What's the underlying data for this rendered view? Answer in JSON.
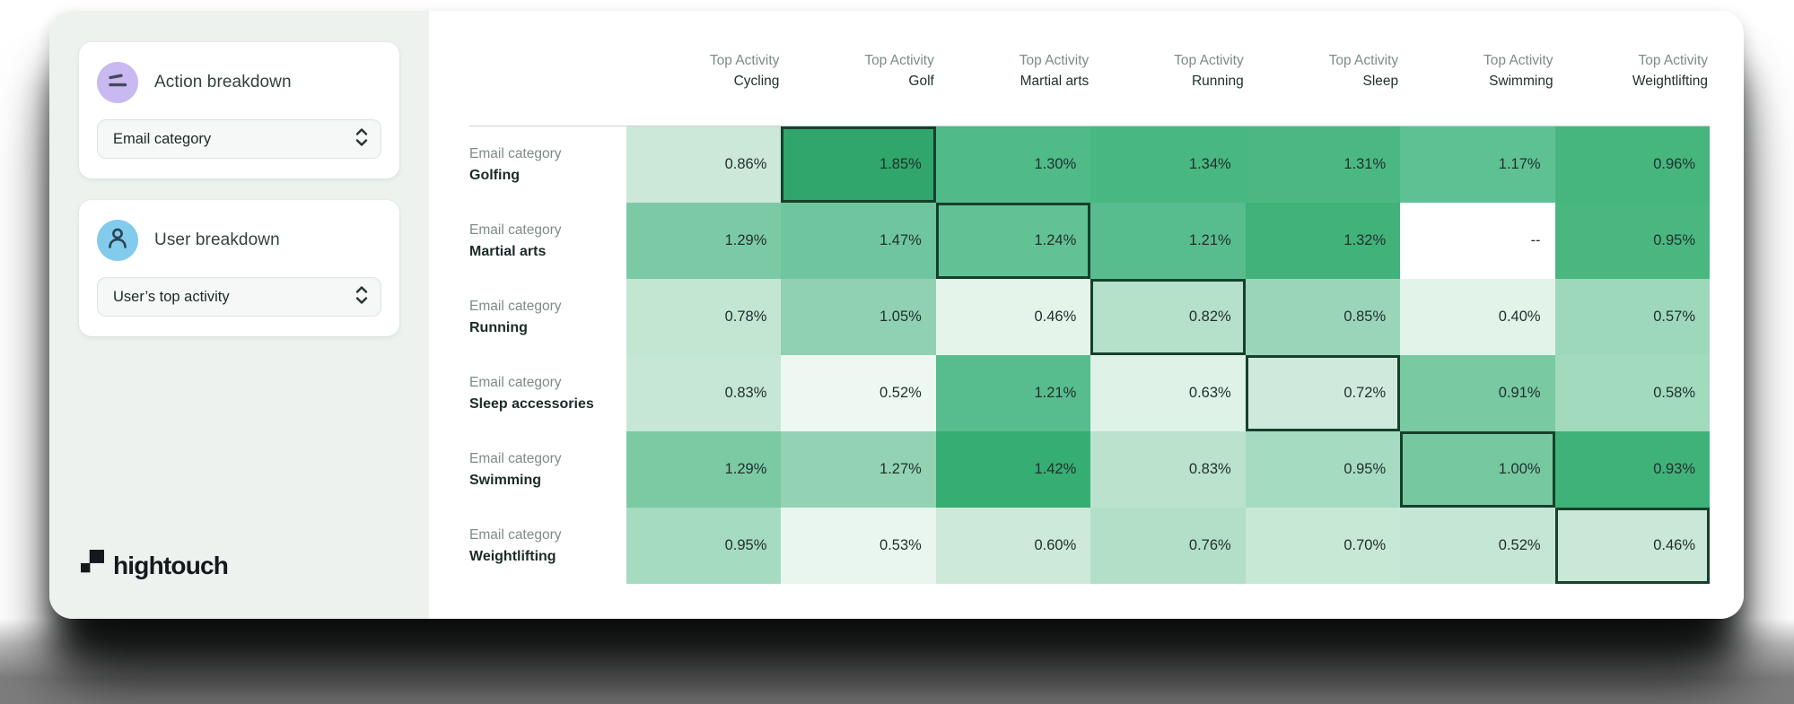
{
  "sidebar": {
    "action_panel": {
      "title": "Action breakdown",
      "dropdown_value": "Email category"
    },
    "user_panel": {
      "title": "User breakdown",
      "dropdown_value": "User’s top activity"
    },
    "logo_text": "hightouch"
  },
  "chart_data": {
    "type": "heatmap",
    "column_header_label": "Top Activity",
    "row_header_label": "Email category",
    "columns": [
      "Cycling",
      "Golf",
      "Martial arts",
      "Running",
      "Sleep",
      "Swimming",
      "Weightlifting"
    ],
    "rows": [
      "Golfing",
      "Martial arts",
      "Running",
      "Sleep accessories",
      "Swimming",
      "Weightlifting"
    ],
    "values_percent": [
      [
        0.86,
        1.85,
        1.3,
        1.34,
        1.31,
        1.17,
        0.96
      ],
      [
        1.29,
        1.47,
        1.24,
        1.21,
        1.32,
        null,
        0.95
      ],
      [
        0.78,
        1.05,
        0.46,
        0.82,
        0.85,
        0.4,
        0.57
      ],
      [
        0.83,
        0.52,
        1.21,
        0.63,
        0.72,
        0.91,
        0.58
      ],
      [
        1.29,
        1.27,
        1.42,
        0.83,
        0.95,
        1.0,
        0.93
      ],
      [
        0.95,
        0.53,
        0.6,
        0.76,
        0.7,
        0.52,
        0.46
      ]
    ],
    "display_values": [
      [
        "0.86%",
        "1.85%",
        "1.30%",
        "1.34%",
        "1.31%",
        "1.17%",
        "0.96%"
      ],
      [
        "1.29%",
        "1.47%",
        "1.24%",
        "1.21%",
        "1.32%",
        "--",
        "0.95%"
      ],
      [
        "0.78%",
        "1.05%",
        "0.46%",
        "0.82%",
        "0.85%",
        "0.40%",
        "0.57%"
      ],
      [
        "0.83%",
        "0.52%",
        "1.21%",
        "0.63%",
        "0.72%",
        "0.91%",
        "0.58%"
      ],
      [
        "1.29%",
        "1.27%",
        "1.42%",
        "0.83%",
        "0.95%",
        "1.00%",
        "0.93%"
      ],
      [
        "0.95%",
        "0.53%",
        "0.60%",
        "0.76%",
        "0.70%",
        "0.52%",
        "0.46%"
      ]
    ],
    "cell_colors": [
      [
        "#cbe8d9",
        "#30a56c",
        "#50ba88",
        "#49b782",
        "#4bb883",
        "#5ec193",
        "#46b67e"
      ],
      [
        "#7ccaa5",
        "#6fc69e",
        "#62c295",
        "#57bd8e",
        "#40b27a",
        "#ffffff",
        "#4ab780"
      ],
      [
        "#c3e6d3",
        "#8fd1b1",
        "#e4f4eb",
        "#b5e0c9",
        "#9bd5b9",
        "#e2f3ea",
        "#9ed8bb"
      ],
      [
        "#c6e7d5",
        "#edf8f2",
        "#57bd8e",
        "#def2e8",
        "#cfeadd",
        "#79c9a3",
        "#a2dabd"
      ],
      [
        "#7bcaa4",
        "#93d3b3",
        "#36ad73",
        "#bae2cc",
        "#a5dbc0",
        "#76c8a1",
        "#3fb279"
      ],
      [
        "#a5dbc0",
        "#e9f6ef",
        "#cce9d9",
        "#b3dfc8",
        "#c8e8d6",
        "#c5e6d4",
        "#c9e8d7"
      ]
    ],
    "highlighted_cells": [
      [
        0,
        1
      ],
      [
        1,
        2
      ],
      [
        2,
        3
      ],
      [
        3,
        4
      ],
      [
        4,
        5
      ],
      [
        5,
        6
      ]
    ],
    "highlight_border_color": "#16402b",
    "missing_display": "--",
    "color_scale": {
      "low": "#edf8f2",
      "high": "#30a56c"
    },
    "legend_position": "none",
    "grid": "off"
  },
  "colors": {
    "sidebar_bg": "#edf2ef",
    "action_icon_bg": "#c9b9f1",
    "user_icon_bg": "#82cbec",
    "grid_line": "#c9d2cd",
    "page_strip": "#7d7d7d"
  }
}
